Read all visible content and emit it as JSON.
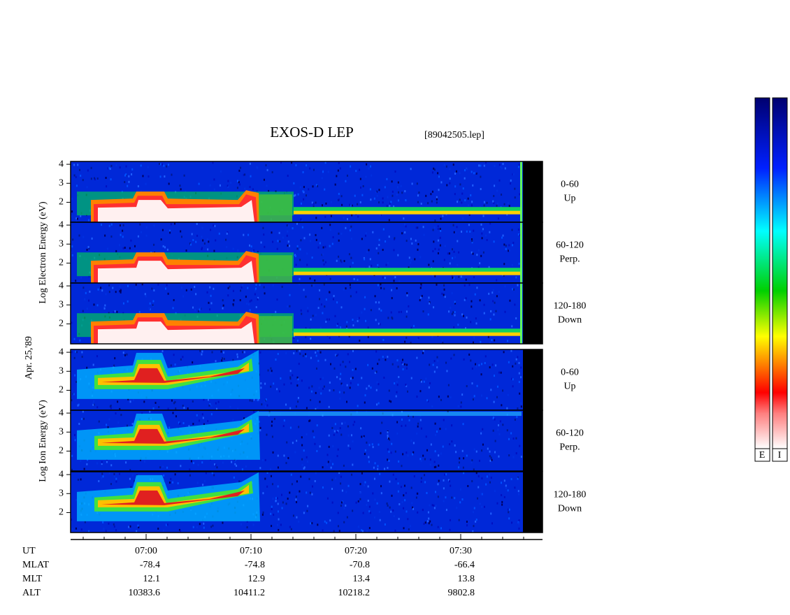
{
  "chart_data": {
    "type": "spectrogram",
    "title": "EXOS-D LEP",
    "file": "[89042505.lep]",
    "date": "Apr. 25,'89",
    "ylim": [
      0.95,
      4.15
    ],
    "yticks": [
      2,
      3,
      4
    ],
    "xlim": [
      -7.2,
      37.8
    ],
    "xticks": [
      {
        "value": 0,
        "label": "07:00"
      },
      {
        "value": 10,
        "label": "07:10"
      },
      {
        "value": 20,
        "label": "07:20"
      },
      {
        "value": 30,
        "label": "07:30"
      }
    ],
    "minor_xticks": [
      -6,
      -4,
      -2,
      2,
      4,
      6,
      8,
      12,
      14,
      16,
      18,
      22,
      24,
      26,
      28,
      32,
      34,
      36
    ],
    "groups": [
      {
        "ylabel": "Log  Electron  Energy (eV)",
        "panels": [
          {
            "angle": "0-60",
            "direction": "Up"
          },
          {
            "angle": "60-120",
            "direction": "Perp."
          },
          {
            "angle": "120-180",
            "direction": "Down"
          }
        ]
      },
      {
        "ylabel": "Log  Ion  Energy (eV)",
        "panels": [
          {
            "angle": "0-60",
            "direction": "Up"
          },
          {
            "angle": "60-120",
            "direction": "Perp."
          },
          {
            "angle": "120-180",
            "direction": "Down"
          }
        ]
      }
    ],
    "ephemeris": {
      "label": "UT",
      "rows": [
        {
          "name": "MLAT",
          "values": [
            -78.4,
            -74.8,
            -70.8,
            -66.4
          ]
        },
        {
          "name": "MLT",
          "values": [
            12.1,
            12.9,
            13.4,
            13.8
          ]
        },
        {
          "name": "ALT",
          "values": [
            10383.6,
            10411.2,
            10218.2,
            9802.8
          ]
        }
      ]
    },
    "colorbar_labels": [
      "E",
      "I"
    ]
  }
}
